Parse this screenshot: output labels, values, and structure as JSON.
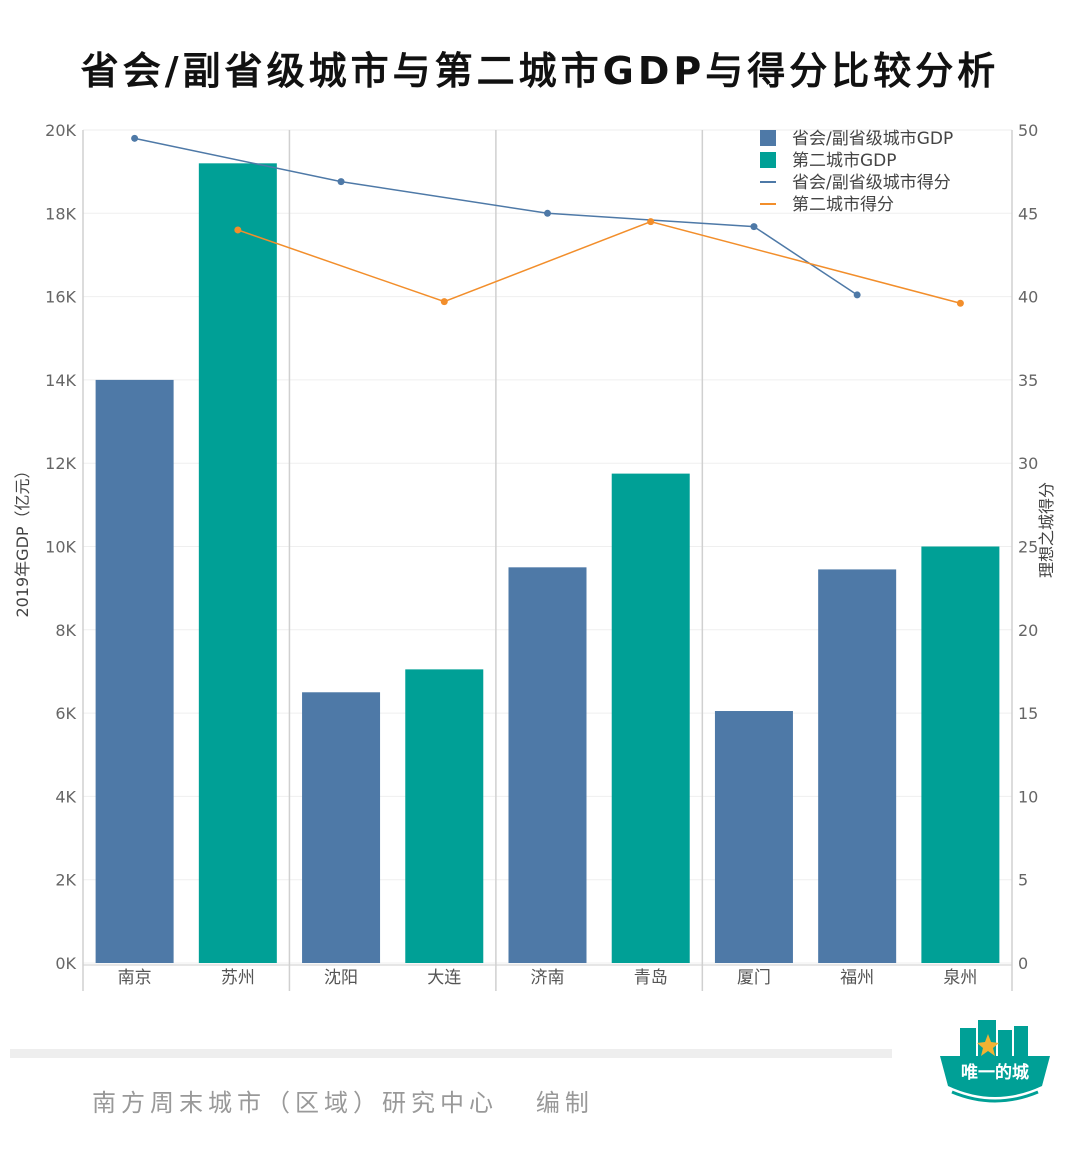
{
  "title": "省会/副省级城市与第二城市GDP与得分比较分析",
  "footer": {
    "credit": "南方周末城市（区域）研究中心   编制",
    "logo_text": "唯一的城"
  },
  "colors": {
    "capital_gdp": "#4e79a7",
    "second_gdp": "#00a096",
    "capital_score": "#4e79a7",
    "second_score": "#f28e2b"
  },
  "chart_data": {
    "type": "bar",
    "title": "省会/副省级城市与第二城市GDP与得分比较分析",
    "ylabel": "2019年GDP（亿元）",
    "y2label": "理想之城得分",
    "ylim": [
      0,
      20000
    ],
    "y2lim": [
      0,
      50
    ],
    "yticks": [
      "0K",
      "2K",
      "4K",
      "6K",
      "8K",
      "10K",
      "12K",
      "14K",
      "16K",
      "18K",
      "20K"
    ],
    "y2ticks": [
      "0",
      "5",
      "10",
      "15",
      "20",
      "25",
      "30",
      "35",
      "40",
      "45",
      "50"
    ],
    "categories": [
      "南京",
      "苏州",
      "沈阳",
      "大连",
      "济南",
      "青岛",
      "厦门",
      "福州",
      "泉州"
    ],
    "groups": [
      [
        "南京",
        "苏州"
      ],
      [
        "沈阳",
        "大连"
      ],
      [
        "济南",
        "青岛"
      ],
      [
        "厦门",
        "福州",
        "泉州"
      ]
    ],
    "legend_position": "top-right",
    "grid": true,
    "series": [
      {
        "name": "省会/副省级城市GDP",
        "kind": "bar",
        "axis": "left",
        "values": [
          14000,
          null,
          6500,
          null,
          9500,
          null,
          6050,
          9450,
          null
        ]
      },
      {
        "name": "第二城市GDP",
        "kind": "bar",
        "axis": "left",
        "values": [
          null,
          19200,
          null,
          7050,
          null,
          11750,
          null,
          null,
          10000
        ]
      },
      {
        "name": "省会/副省级城市得分",
        "kind": "line",
        "axis": "right",
        "values": [
          49.5,
          null,
          46.9,
          null,
          45.0,
          null,
          44.2,
          40.1,
          null
        ]
      },
      {
        "name": "第二城市得分",
        "kind": "line",
        "axis": "right",
        "values": [
          null,
          44.0,
          null,
          39.7,
          null,
          44.5,
          null,
          null,
          39.6
        ]
      }
    ]
  }
}
